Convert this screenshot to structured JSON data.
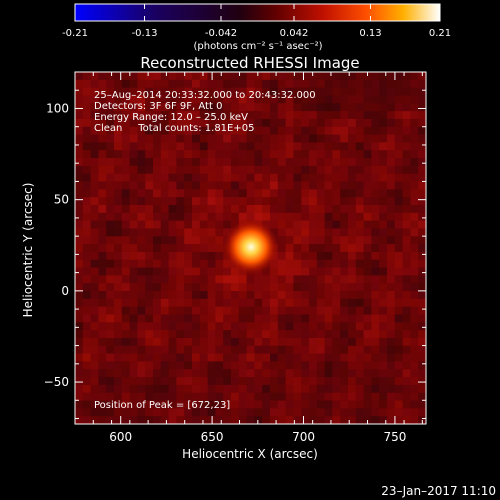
{
  "colorbar": {
    "ticks": [
      "-0.21",
      "-0.13",
      "-0.042",
      "0.042",
      "0.13",
      "0.21"
    ],
    "tick_values": [
      -0.21,
      -0.13,
      -0.042,
      0.042,
      0.13,
      0.21
    ],
    "range": [
      -0.21,
      0.21
    ],
    "units_label": "(photons cm⁻² s⁻¹ asec⁻²)",
    "colormap": [
      "#0000ff",
      "#000000",
      "#800000",
      "#ff4000",
      "#ffc000",
      "#ffffff"
    ]
  },
  "chart_data": {
    "type": "heatmap",
    "title": "Reconstructed RHESSI Image",
    "xlabel": "Heliocentric X (arcsec)",
    "ylabel": "Heliocentric Y (arcsec)",
    "xlim": [
      575,
      767
    ],
    "ylim": [
      -73,
      120
    ],
    "x_ticks": [
      600,
      650,
      700,
      750
    ],
    "y_ticks": [
      -50,
      0,
      50,
      100
    ],
    "x_tick_labels": [
      "600",
      "650",
      "700",
      "750"
    ],
    "y_tick_labels": [
      "−50",
      "0",
      "50",
      "100"
    ],
    "peak": {
      "x": 672,
      "y": 23
    },
    "annotations": [
      "25–Aug–2014 20:33:32.000 to 20:43:32.000",
      "Detectors: 3F 6F 9F, Att 0",
      "Energy Range: 12.0 – 25.0 keV",
      "Clean     Total counts: 1.81E+05"
    ],
    "peak_label": "Position of Peak = [672,23]"
  },
  "footer": {
    "timestamp": "23–Jan–2017 11:10"
  }
}
